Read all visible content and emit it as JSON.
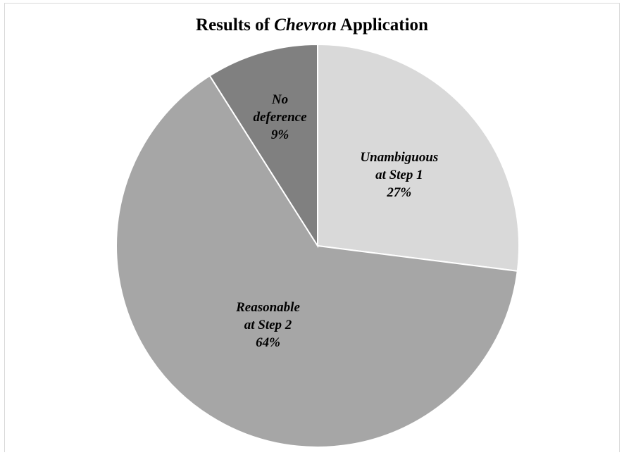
{
  "chart_data": {
    "type": "pie",
    "title": {
      "prefix": "Results of ",
      "emphasis": "Chevron",
      "suffix": " Application"
    },
    "slices": [
      {
        "label_lines": [
          "Unambiguous",
          "at Step 1"
        ],
        "value": 27,
        "value_label": "27%",
        "color": "#d9d9d9"
      },
      {
        "label_lines": [
          "Reasonable",
          "at Step 2"
        ],
        "value": 64,
        "value_label": "64%",
        "color": "#a6a6a6"
      },
      {
        "label_lines": [
          "No",
          "deference"
        ],
        "value": 9,
        "value_label": "9%",
        "color": "#808080"
      }
    ],
    "start_angle_deg": 0,
    "direction": "clockwise",
    "slice_border_color": "#ffffff"
  }
}
